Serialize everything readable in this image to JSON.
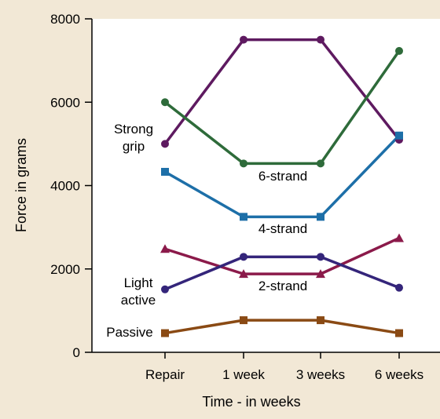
{
  "chart_data": {
    "type": "line",
    "categories": [
      "Repair",
      "1 week",
      "3 weeks",
      "6 weeks"
    ],
    "xlabel": "Time - in weeks",
    "ylabel": "Force in grams",
    "ylim": [
      0,
      8000
    ],
    "yticks": [
      0,
      2000,
      4000,
      6000,
      8000
    ],
    "grid": false,
    "colors": {
      "background": "#f2e8d6",
      "plot_background": "#ffffff",
      "axis": "#000000"
    },
    "series": [
      {
        "name": "Strong grip",
        "values": [
          5000,
          7500,
          7500,
          5100
        ],
        "color": "#5e1a60",
        "marker": "circle"
      },
      {
        "name": "6-strand",
        "values": [
          6000,
          4530,
          4530,
          7230
        ],
        "color": "#2e6b3a",
        "marker": "circle"
      },
      {
        "name": "4-strand",
        "values": [
          4330,
          3250,
          3250,
          5200
        ],
        "color": "#1d6fa8",
        "marker": "square"
      },
      {
        "name": "2-strand",
        "values": [
          2480,
          1880,
          1880,
          2740
        ],
        "color": "#8b1a4a",
        "marker": "triangle"
      },
      {
        "name": "Light active",
        "values": [
          1510,
          2290,
          2290,
          1550
        ],
        "color": "#34257a",
        "marker": "circle"
      },
      {
        "name": "Passive",
        "values": [
          460,
          770,
          770,
          460
        ],
        "color": "#8a4a14",
        "marker": "square"
      }
    ],
    "annotations": [
      {
        "id": "strong-grip",
        "lines": [
          "Strong",
          "grip"
        ]
      },
      {
        "id": "six-strand",
        "lines": [
          "6-strand"
        ]
      },
      {
        "id": "four-strand",
        "lines": [
          "4-strand"
        ]
      },
      {
        "id": "two-strand",
        "lines": [
          "2-strand"
        ]
      },
      {
        "id": "light-active",
        "lines": [
          "Light",
          "active"
        ]
      },
      {
        "id": "passive",
        "lines": [
          "Passive"
        ]
      }
    ]
  }
}
